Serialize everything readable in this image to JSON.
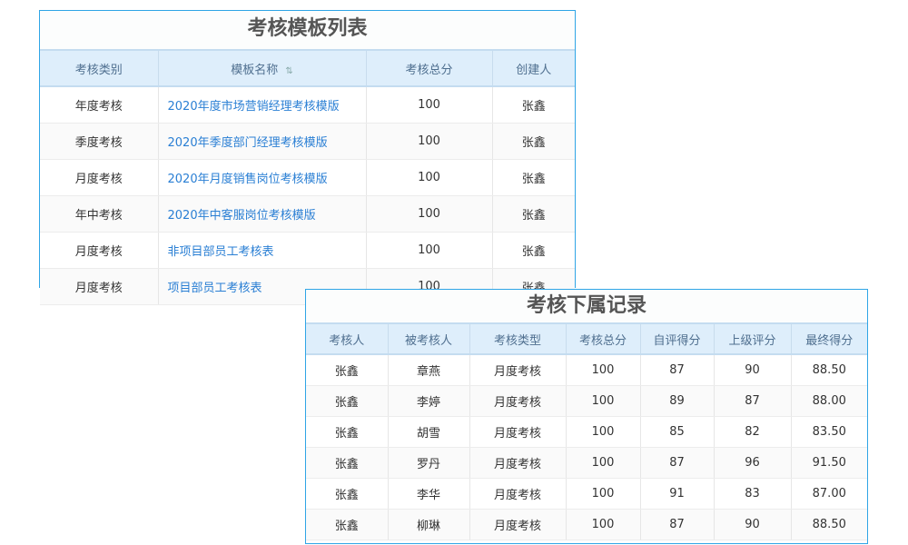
{
  "templates": {
    "title": "考核模板列表",
    "columns": [
      "考核类别",
      "模板名称",
      "考核总分",
      "创建人"
    ],
    "rows": [
      [
        "年度考核",
        "2020年度市场营销经理考核模版",
        "100",
        "张鑫"
      ],
      [
        "季度考核",
        "2020年季度部门经理考核模版",
        "100",
        "张鑫"
      ],
      [
        "月度考核",
        "2020年月度销售岗位考核模版",
        "100",
        "张鑫"
      ],
      [
        "年中考核",
        "2020年中客服岗位考核模版",
        "100",
        "张鑫"
      ],
      [
        "月度考核",
        "非项目部员工考核表",
        "100",
        "张鑫"
      ],
      [
        "月度考核",
        "项目部员工考核表",
        "100",
        "张鑫"
      ]
    ]
  },
  "records": {
    "title": "考核下属记录",
    "columns": [
      "考核人",
      "被考核人",
      "考核类型",
      "考核总分",
      "自评得分",
      "上级评分",
      "最终得分"
    ],
    "rows": [
      [
        "张鑫",
        "章燕",
        "月度考核",
        "100",
        "87",
        "90",
        "88.50"
      ],
      [
        "张鑫",
        "李婷",
        "月度考核",
        "100",
        "89",
        "87",
        "88.00"
      ],
      [
        "张鑫",
        "胡雪",
        "月度考核",
        "100",
        "85",
        "82",
        "83.50"
      ],
      [
        "张鑫",
        "罗丹",
        "月度考核",
        "100",
        "87",
        "96",
        "91.50"
      ],
      [
        "张鑫",
        "李华",
        "月度考核",
        "100",
        "91",
        "83",
        "87.00"
      ],
      [
        "张鑫",
        "柳琳",
        "月度考核",
        "100",
        "87",
        "90",
        "88.50"
      ]
    ]
  }
}
